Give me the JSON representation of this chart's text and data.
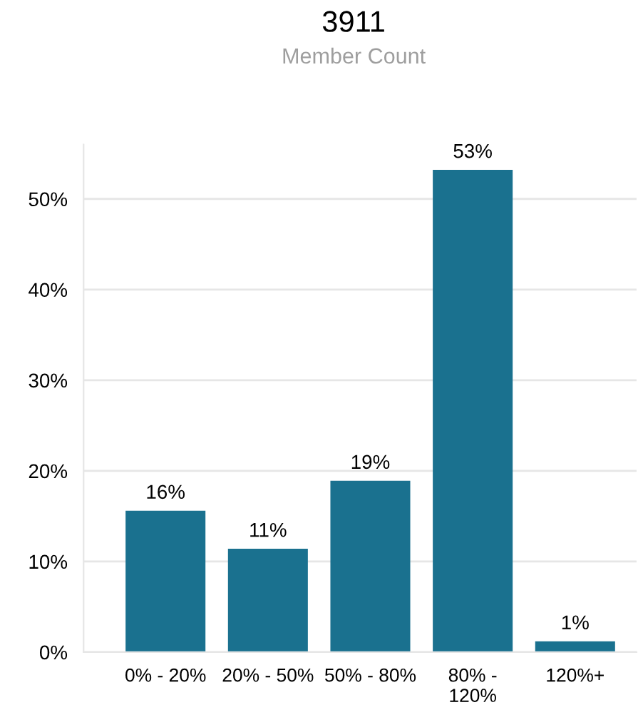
{
  "chart_data": {
    "type": "bar",
    "title": "3911",
    "subtitle": "Member Count",
    "categories": [
      "0% - 20%",
      "20% - 50%",
      "50% - 80%",
      "80% - 120%",
      "120%+"
    ],
    "values": [
      15.6,
      11.4,
      18.9,
      53.2,
      1.2
    ],
    "value_labels": [
      "16%",
      "11%",
      "19%",
      "53%",
      "1%"
    ],
    "color": "#1a718f",
    "ylim": [
      0,
      56
    ],
    "yticks": [
      {
        "value": 0,
        "label": "0%"
      },
      {
        "value": 10,
        "label": "10%"
      },
      {
        "value": 20,
        "label": "20%"
      },
      {
        "value": 30,
        "label": "30%"
      },
      {
        "value": 40,
        "label": "40%"
      },
      {
        "value": 50,
        "label": "50%"
      }
    ],
    "grid": "y",
    "legend": false
  }
}
